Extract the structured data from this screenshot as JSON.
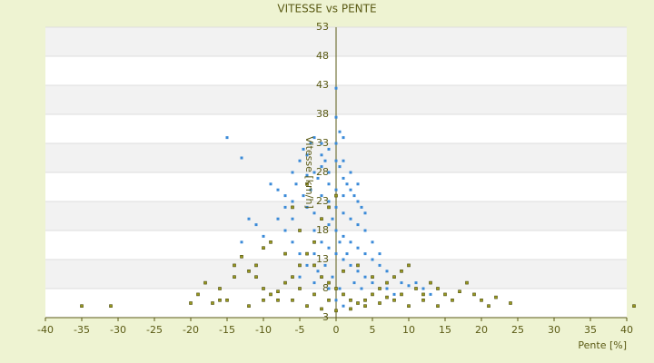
{
  "chart_data": {
    "type": "scatter",
    "title": "VITESSE vs PENTE",
    "x_label": "Pente [%]",
    "y_label": "Vitesse [km/h]",
    "xlim": [
      -40,
      40
    ],
    "xticks": [
      -40,
      -35,
      -30,
      -25,
      -20,
      -15,
      -10,
      -5,
      0,
      5,
      10,
      15,
      20,
      25,
      30,
      35,
      40
    ],
    "ylim": [
      3,
      53
    ],
    "yticks": [
      3,
      8,
      13,
      18,
      23,
      28,
      33,
      38,
      43,
      48,
      53
    ],
    "grid": true,
    "series": [
      {
        "color": "#3a8ad8",
        "x": [
          -15,
          -13,
          -12,
          -11,
          -13,
          -9,
          -8,
          -7,
          -6,
          -6,
          -5,
          -4.5,
          -4,
          -3.5,
          -3,
          -2,
          -1,
          0,
          0,
          0.5,
          1,
          -3,
          -2.5,
          -2,
          -1.5,
          -1,
          0,
          0.5,
          1,
          1.5,
          2,
          2.5,
          3,
          3.5,
          4,
          -4,
          -3,
          -2,
          -1,
          0,
          1,
          2,
          3,
          4,
          5,
          6,
          7,
          8,
          9,
          10,
          -3,
          -2,
          -1,
          0,
          1,
          2,
          3,
          4,
          5,
          6,
          -2,
          -1,
          0,
          1,
          2,
          3,
          -1,
          0,
          1,
          -0.5,
          0.5,
          1.5,
          -1.5,
          -0.5,
          0.5,
          -4,
          -5,
          -6,
          -7,
          -8,
          -5,
          -3,
          11,
          12,
          13,
          -10,
          -2.5,
          2.5,
          3.5,
          5,
          7,
          8,
          -4.5,
          -3.5,
          -5.5,
          -4,
          -2,
          0,
          1,
          2,
          3,
          4,
          5,
          6,
          -6,
          -7,
          -3,
          -1,
          0,
          1
        ],
        "y": [
          34,
          30.5,
          20,
          19,
          16,
          26,
          25,
          24,
          23,
          28,
          30,
          32,
          31,
          33,
          34,
          33,
          32,
          37.5,
          42.5,
          35,
          34,
          28,
          27,
          29,
          30,
          28,
          30,
          29,
          27,
          26,
          25,
          24,
          23,
          22,
          21,
          22,
          21,
          20,
          19,
          18,
          17,
          16,
          15,
          14,
          13,
          12,
          11,
          10,
          9,
          8.5,
          18,
          16,
          15,
          14,
          13,
          12,
          11,
          10,
          9,
          8,
          24,
          23,
          22,
          21,
          20,
          19,
          26,
          25,
          24,
          20,
          16,
          14,
          12,
          10,
          8,
          12,
          14,
          16,
          18,
          20,
          10,
          9,
          9,
          8,
          7,
          17,
          11,
          9,
          8,
          7,
          8,
          7,
          24,
          25,
          26,
          27.5,
          31,
          33,
          30,
          28,
          26,
          18,
          16,
          14,
          20,
          22,
          14,
          8,
          6,
          5
        ]
      },
      {
        "color": "#9a9a1e",
        "x": [
          -35,
          -31,
          -20,
          -18,
          -16,
          -15,
          -14,
          -13,
          -12,
          -11,
          -10,
          -9,
          -8,
          -7,
          -6,
          -5,
          -4,
          -3,
          -2,
          -1,
          0,
          -3,
          -2,
          -1,
          0,
          1,
          2,
          3,
          4,
          5,
          6,
          7,
          8,
          9,
          10,
          11,
          12,
          13,
          14,
          15,
          16,
          17,
          18,
          19,
          20,
          21,
          22,
          24,
          -12,
          -10,
          -8,
          -6,
          -4,
          -2,
          0,
          2,
          4,
          6,
          8,
          10,
          12,
          14,
          -7,
          -9,
          -10,
          -5,
          -6,
          -4,
          -11,
          -14,
          -16,
          -19,
          -17,
          1,
          3,
          5,
          7,
          9,
          -1,
          -3,
          -5,
          41
        ],
        "y": [
          5,
          5,
          5.5,
          9,
          8,
          6,
          12,
          13.5,
          11,
          10,
          8,
          7,
          6,
          9,
          10,
          12,
          14,
          16,
          20,
          22,
          24,
          12,
          10,
          9,
          8,
          7,
          6,
          5.5,
          6,
          7,
          8,
          9,
          10,
          11,
          12,
          8,
          7,
          9,
          8,
          7,
          6,
          7.5,
          9,
          7,
          6,
          5,
          6.5,
          5.5,
          5,
          6,
          7.5,
          6,
          5,
          4.5,
          4.2,
          4.5,
          5,
          5.5,
          6,
          5,
          6,
          5,
          14,
          16,
          15,
          18,
          22,
          26,
          12,
          10,
          6,
          7,
          5.5,
          11,
          12,
          10,
          6.5,
          7,
          6,
          7,
          8,
          5
        ]
      }
    ]
  }
}
